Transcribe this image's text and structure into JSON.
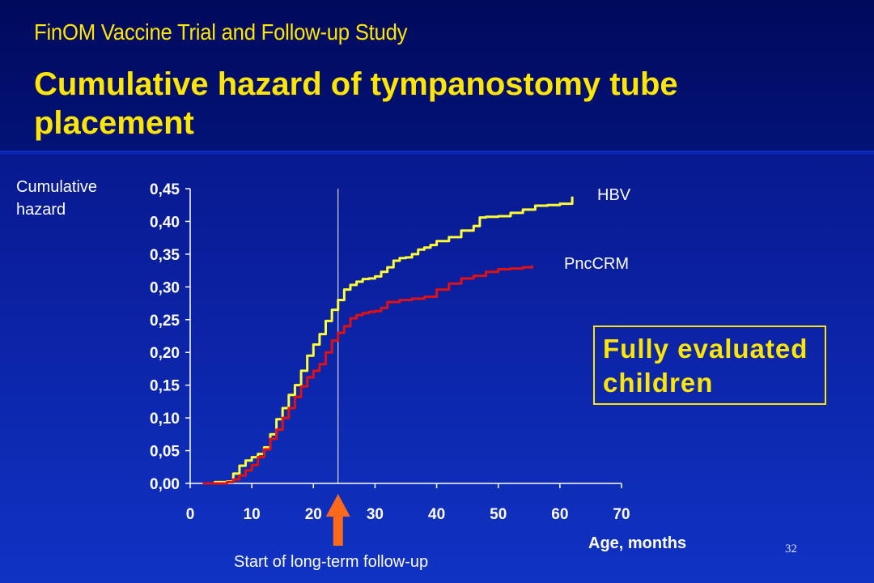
{
  "slide": {
    "subtitle": "FinOM Vaccine Trial and Follow-up Study",
    "title": "Cumulative hazard of tympanostomy tube placement",
    "page_number": "32"
  },
  "annotations": {
    "box_text_line1": "Fully evaluated",
    "box_text_line2": "children",
    "arrow_label": "Start of long-term follow-up"
  },
  "colors": {
    "background": "#0a1f9e",
    "title": "#ffe600",
    "hbv": "#ffff33",
    "pnccrm": "#e31010",
    "arrow": "#ff6a1a",
    "text": "#ffffff"
  },
  "chart_data": {
    "type": "line",
    "title": "",
    "xlabel": "Age, months",
    "ylabel_lines": [
      "Cumulative",
      "hazard"
    ],
    "xlim": [
      0,
      70
    ],
    "ylim": [
      0,
      0.45
    ],
    "x_ticks": [
      "0",
      "10",
      "20",
      "30",
      "40",
      "50",
      "60",
      "70"
    ],
    "y_ticks": [
      "0,00",
      "0,05",
      "0,10",
      "0,15",
      "0,20",
      "0,25",
      "0,30",
      "0,35",
      "0,40",
      "0,45"
    ],
    "grid": false,
    "vertical_reference_x": 24,
    "series": [
      {
        "name": "HBV",
        "color": "#ffff33",
        "x": [
          2,
          4,
          6,
          7,
          8,
          9,
          10,
          11,
          12,
          13,
          14,
          15,
          16,
          17,
          18,
          19,
          20,
          21,
          22,
          23,
          24,
          25,
          26,
          27,
          28,
          29,
          30,
          31,
          32,
          33,
          34,
          35,
          36,
          37,
          38,
          39,
          40,
          42,
          44,
          46,
          47,
          48,
          50,
          52,
          54,
          56,
          58,
          60,
          62
        ],
        "y": [
          0.0,
          0.002,
          0.003,
          0.015,
          0.027,
          0.035,
          0.04,
          0.045,
          0.055,
          0.075,
          0.098,
          0.115,
          0.135,
          0.15,
          0.172,
          0.195,
          0.212,
          0.228,
          0.248,
          0.265,
          0.28,
          0.296,
          0.303,
          0.308,
          0.312,
          0.313,
          0.316,
          0.323,
          0.33,
          0.34,
          0.344,
          0.345,
          0.35,
          0.357,
          0.36,
          0.364,
          0.37,
          0.376,
          0.386,
          0.393,
          0.406,
          0.407,
          0.408,
          0.413,
          0.418,
          0.424,
          0.425,
          0.427,
          0.438
        ]
      },
      {
        "name": "PncCRM",
        "color": "#e31010",
        "x": [
          2,
          4,
          6,
          7,
          8,
          9,
          10,
          11,
          12,
          13,
          14,
          15,
          16,
          17,
          18,
          19,
          20,
          21,
          22,
          23,
          24,
          25,
          26,
          27,
          28,
          29,
          30,
          31,
          32,
          34,
          36,
          38,
          40,
          42,
          44,
          46,
          48,
          50,
          52,
          54,
          55.5
        ],
        "y": [
          0.0,
          0.0,
          0.002,
          0.006,
          0.012,
          0.02,
          0.028,
          0.04,
          0.052,
          0.068,
          0.082,
          0.1,
          0.115,
          0.132,
          0.148,
          0.162,
          0.172,
          0.182,
          0.2,
          0.218,
          0.23,
          0.24,
          0.252,
          0.257,
          0.26,
          0.262,
          0.263,
          0.268,
          0.277,
          0.28,
          0.282,
          0.285,
          0.296,
          0.305,
          0.313,
          0.317,
          0.323,
          0.327,
          0.328,
          0.33,
          0.333
        ]
      }
    ]
  }
}
